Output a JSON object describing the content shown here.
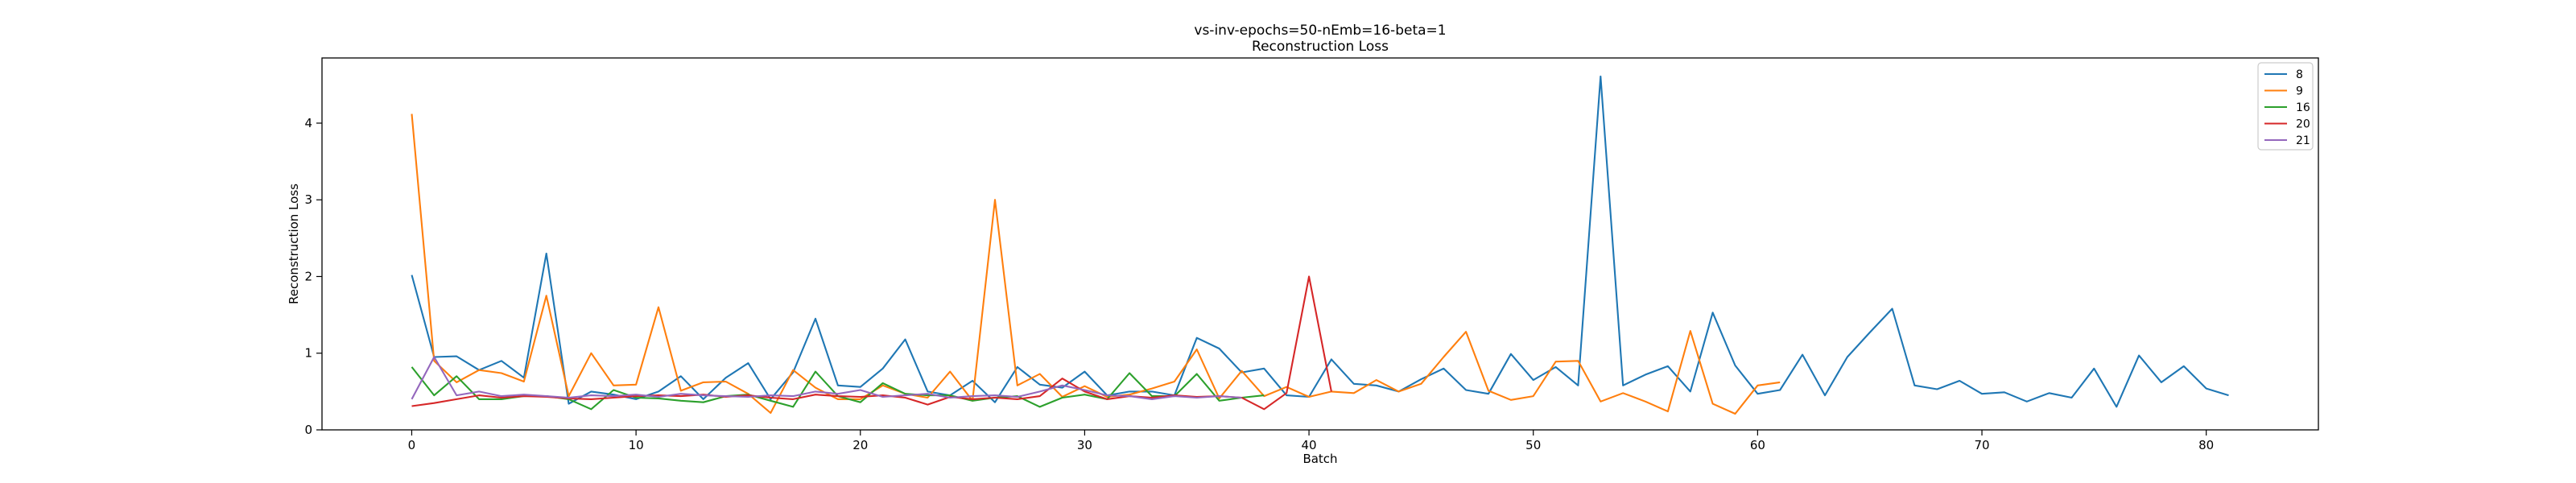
{
  "chart_data": {
    "type": "line",
    "title": "vs-inv-epochs=50-nEmb=16-beta=1",
    "subtitle": "Reconstruction Loss",
    "xlabel": "Batch",
    "ylabel": "Reconstruction Loss",
    "xlim": [
      -4,
      85
    ],
    "ylim": [
      0,
      4.85
    ],
    "xticks": [
      0,
      10,
      20,
      30,
      40,
      50,
      60,
      70,
      80
    ],
    "yticks": [
      0,
      1,
      2,
      3,
      4
    ],
    "grid": false,
    "legend_position": "top-right",
    "series": [
      {
        "name": "8",
        "color": "#1f77b4",
        "values": [
          2.02,
          0.95,
          0.96,
          0.78,
          0.9,
          0.68,
          2.3,
          0.34,
          0.5,
          0.46,
          0.4,
          0.5,
          0.7,
          0.4,
          0.68,
          0.87,
          0.4,
          0.75,
          1.45,
          0.58,
          0.56,
          0.8,
          1.18,
          0.5,
          0.45,
          0.64,
          0.36,
          0.82,
          0.59,
          0.55,
          0.76,
          0.45,
          0.5,
          0.5,
          0.45,
          1.2,
          1.06,
          0.75,
          0.8,
          0.45,
          0.43,
          0.92,
          0.6,
          0.58,
          0.5,
          0.66,
          0.8,
          0.52,
          0.47,
          0.99,
          0.65,
          0.82,
          0.58,
          4.61,
          0.58,
          0.72,
          0.83,
          0.5,
          1.53,
          0.84,
          0.47,
          0.52,
          0.98,
          0.45,
          0.95,
          1.27,
          1.58,
          0.58,
          0.53,
          0.64,
          0.47,
          0.49,
          0.37,
          0.48,
          0.42,
          0.8,
          0.3,
          0.97,
          0.62,
          0.83,
          0.54,
          0.45
        ]
      },
      {
        "name": "9",
        "color": "#ff7f0e",
        "values": [
          4.12,
          0.9,
          0.62,
          0.78,
          0.74,
          0.63,
          1.75,
          0.44,
          1.0,
          0.58,
          0.59,
          1.6,
          0.51,
          0.62,
          0.63,
          0.47,
          0.22,
          0.78,
          0.55,
          0.4,
          0.4,
          0.58,
          0.47,
          0.42,
          0.76,
          0.38,
          3.0,
          0.58,
          0.73,
          0.43,
          0.57,
          0.43,
          0.46,
          0.54,
          0.63,
          1.05,
          0.41,
          0.77,
          0.44,
          0.56,
          0.43,
          0.5,
          0.48,
          0.65,
          0.5,
          0.6,
          0.95,
          1.28,
          0.51,
          0.39,
          0.44,
          0.89,
          0.9,
          0.37,
          0.48,
          0.37,
          0.24,
          1.29,
          0.34,
          0.21,
          0.58,
          0.62
        ]
      },
      {
        "name": "16",
        "color": "#2ca02c",
        "values": [
          0.82,
          0.45,
          0.7,
          0.4,
          0.4,
          0.44,
          0.44,
          0.4,
          0.27,
          0.52,
          0.42,
          0.41,
          0.38,
          0.36,
          0.44,
          0.46,
          0.38,
          0.3,
          0.76,
          0.44,
          0.36,
          0.61,
          0.47,
          0.45,
          0.45,
          0.38,
          0.42,
          0.44,
          0.3,
          0.42,
          0.46,
          0.4,
          0.74,
          0.44,
          0.44,
          0.73,
          0.38,
          0.42,
          0.45
        ]
      },
      {
        "name": "20",
        "color": "#d62728",
        "values": [
          0.31,
          0.35,
          0.4,
          0.45,
          0.42,
          0.44,
          0.43,
          0.41,
          0.4,
          0.42,
          0.44,
          0.45,
          0.44,
          0.46,
          0.43,
          0.45,
          0.42,
          0.4,
          0.46,
          0.44,
          0.43,
          0.45,
          0.42,
          0.33,
          0.43,
          0.4,
          0.42,
          0.4,
          0.44,
          0.67,
          0.5,
          0.4,
          0.44,
          0.42,
          0.45,
          0.43,
          0.44,
          0.42,
          0.27,
          0.48,
          2.0,
          0.5
        ]
      },
      {
        "name": "21",
        "color": "#9467bd",
        "values": [
          0.4,
          0.95,
          0.45,
          0.5,
          0.44,
          0.46,
          0.44,
          0.42,
          0.45,
          0.44,
          0.46,
          0.43,
          0.47,
          0.45,
          0.44,
          0.43,
          0.45,
          0.44,
          0.5,
          0.47,
          0.52,
          0.43,
          0.45,
          0.47,
          0.42,
          0.44,
          0.45,
          0.43,
          0.5,
          0.58,
          0.52,
          0.45,
          0.44,
          0.4,
          0.44,
          0.42,
          0.44,
          0.42
        ]
      }
    ]
  }
}
